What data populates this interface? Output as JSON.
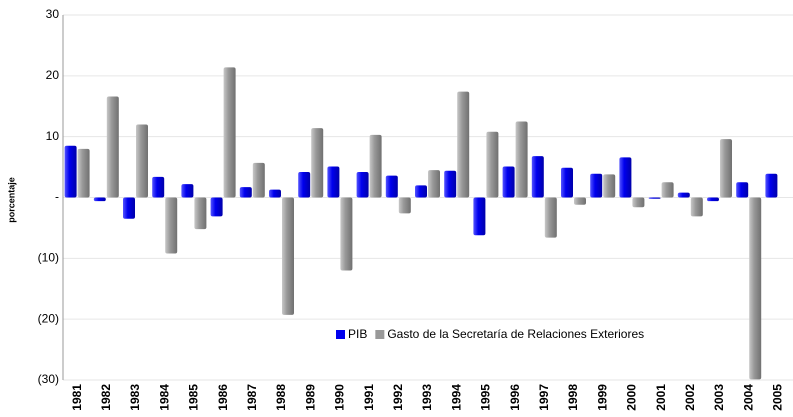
{
  "chart_data": {
    "type": "bar",
    "y_label": "porcentaje",
    "categories": [
      "1981",
      "1982",
      "1983",
      "1984",
      "1985",
      "1986",
      "1987",
      "1988",
      "1989",
      "1990",
      "1991",
      "1992",
      "1993",
      "1994",
      "1995",
      "1996",
      "1997",
      "1998",
      "1999",
      "2000",
      "2001",
      "2002",
      "2003",
      "2004",
      "2005"
    ],
    "series": [
      {
        "name": "PIB",
        "color": "#0000ee",
        "values": [
          8.5,
          -0.6,
          -3.5,
          3.4,
          2.2,
          -3.1,
          1.7,
          1.3,
          4.2,
          5.1,
          4.2,
          3.6,
          2.0,
          4.4,
          -6.2,
          5.1,
          6.8,
          4.9,
          3.9,
          6.6,
          -0.2,
          0.8,
          -0.6,
          2.5,
          3.9
        ]
      },
      {
        "name": "Gasto de la Secretaría de Relaciones Exteriores",
        "color": "#999999",
        "values": [
          8.0,
          16.6,
          12.0,
          -9.2,
          -5.2,
          21.4,
          5.7,
          -19.3,
          11.4,
          -12.0,
          10.3,
          -2.6,
          4.5,
          17.4,
          10.8,
          12.5,
          -6.6,
          -1.2,
          3.8,
          -1.6,
          2.5,
          -3.1,
          9.6,
          -29.9,
          null
        ]
      }
    ],
    "ylim": [
      -30,
      30
    ],
    "yticks": [
      30,
      20,
      10,
      {
        "value": 0,
        "label": "-"
      },
      {
        "value": -10,
        "label": "(10)"
      },
      {
        "value": -20,
        "label": "(20)"
      },
      {
        "value": -30,
        "label": "(30)"
      }
    ],
    "grid": true,
    "legend": "bottom"
  }
}
